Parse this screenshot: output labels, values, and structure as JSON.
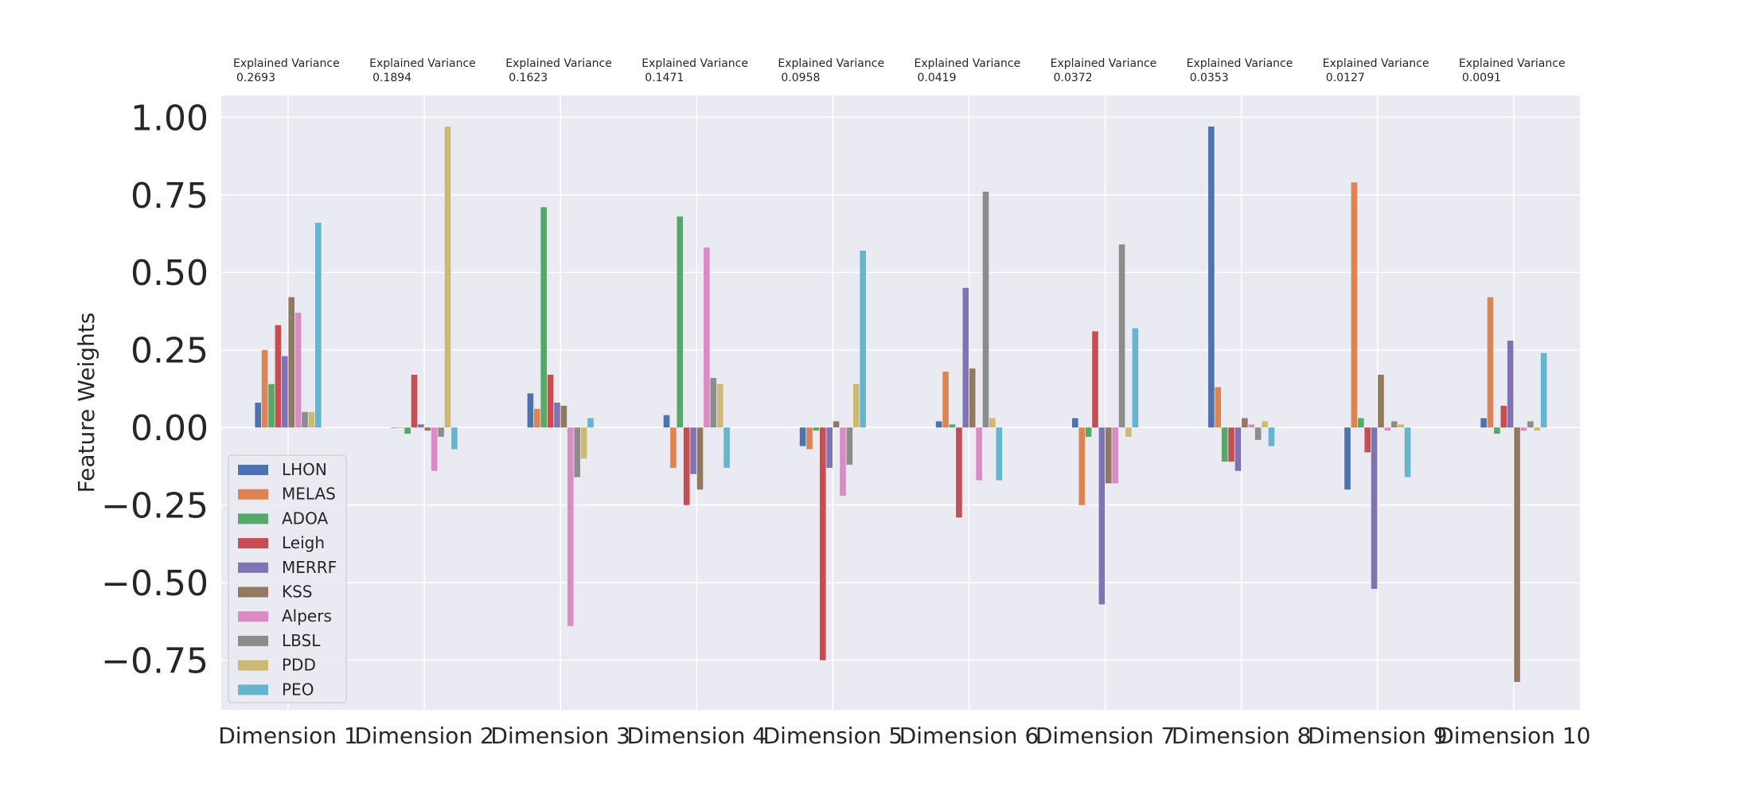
{
  "chart_data": {
    "type": "bar",
    "title": "",
    "xlabel": "",
    "ylabel": "Feature Weights",
    "ylim": [
      -0.91,
      1.07
    ],
    "yticks": [
      1.0,
      0.75,
      0.5,
      0.25,
      0.0,
      -0.25,
      -0.5,
      -0.75
    ],
    "ytick_labels": [
      "1.00",
      "0.75",
      "0.50",
      "0.25",
      "0.00",
      "−0.25",
      "−0.50",
      "−0.75"
    ],
    "grid": true,
    "legend_position": "lower-left",
    "categories": [
      "Dimension 1",
      "Dimension 2",
      "Dimension 3",
      "Dimension 4",
      "Dimension 5",
      "Dimension 6",
      "Dimension 7",
      "Dimension 8",
      "Dimension 9",
      "Dimension 10"
    ],
    "annotations": [
      {
        "label": "Explained Variance",
        "value": "0.2693"
      },
      {
        "label": "Explained Variance",
        "value": "0.1894"
      },
      {
        "label": "Explained Variance",
        "value": "0.1623"
      },
      {
        "label": "Explained Variance",
        "value": "0.1471"
      },
      {
        "label": "Explained Variance",
        "value": "0.0958"
      },
      {
        "label": "Explained Variance",
        "value": "0.0419"
      },
      {
        "label": "Explained Variance",
        "value": "0.0372"
      },
      {
        "label": "Explained Variance",
        "value": "0.0353"
      },
      {
        "label": "Explained Variance",
        "value": "0.0127"
      },
      {
        "label": "Explained Variance",
        "value": "0.0091"
      }
    ],
    "series": [
      {
        "name": "LHON",
        "color": "#4c72b0",
        "values": [
          0.08,
          0.0,
          0.11,
          0.04,
          -0.06,
          0.02,
          0.03,
          0.97,
          -0.2,
          0.03
        ]
      },
      {
        "name": "MELAS",
        "color": "#dd8452",
        "values": [
          0.25,
          0.0,
          0.06,
          -0.13,
          -0.07,
          0.18,
          -0.25,
          0.13,
          0.79,
          0.42
        ]
      },
      {
        "name": "ADOA",
        "color": "#55a868",
        "values": [
          0.14,
          -0.02,
          0.71,
          0.68,
          -0.01,
          0.01,
          -0.03,
          -0.11,
          0.03,
          -0.02
        ]
      },
      {
        "name": "Leigh",
        "color": "#c44e52",
        "values": [
          0.33,
          0.17,
          0.17,
          -0.25,
          -0.75,
          -0.29,
          0.31,
          -0.11,
          -0.08,
          0.07
        ]
      },
      {
        "name": "MERRF",
        "color": "#8172b3",
        "values": [
          0.23,
          0.01,
          0.08,
          -0.15,
          -0.13,
          0.45,
          -0.57,
          -0.14,
          -0.52,
          0.28
        ]
      },
      {
        "name": "KSS",
        "color": "#937860",
        "values": [
          0.42,
          -0.01,
          0.07,
          -0.2,
          0.02,
          0.19,
          -0.18,
          0.03,
          0.17,
          -0.82
        ]
      },
      {
        "name": "Alpers",
        "color": "#da8bc3",
        "values": [
          0.37,
          -0.14,
          -0.64,
          0.58,
          -0.22,
          -0.17,
          -0.18,
          0.01,
          -0.01,
          -0.01
        ]
      },
      {
        "name": "LBSL",
        "color": "#8c8c8c",
        "values": [
          0.05,
          -0.03,
          -0.16,
          0.16,
          -0.12,
          0.76,
          0.59,
          -0.04,
          0.02,
          0.02
        ]
      },
      {
        "name": "PDD",
        "color": "#ccb974",
        "values": [
          0.05,
          0.97,
          -0.1,
          0.14,
          0.14,
          0.03,
          -0.03,
          0.02,
          0.01,
          -0.01
        ]
      },
      {
        "name": "PEO",
        "color": "#64b5cd",
        "values": [
          0.66,
          -0.07,
          0.03,
          -0.13,
          0.57,
          -0.17,
          0.32,
          -0.06,
          -0.16,
          0.24
        ]
      }
    ]
  }
}
